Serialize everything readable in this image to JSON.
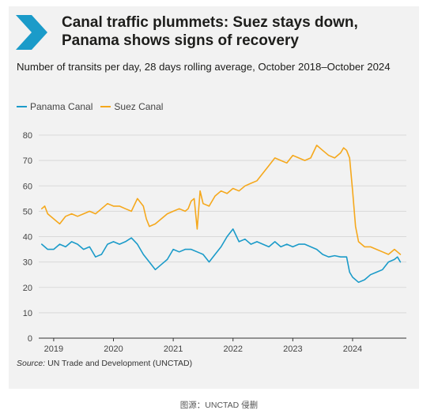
{
  "title": "Canal traffic plummets: Suez stays down, Panama shows signs of recovery",
  "subtitle": "Number of transits per day, 28 days rolling average, October 2018–October 2024",
  "source_label": "Source:",
  "source_text": " UN Trade and Development (UNCTAD)",
  "caption": "图源：UNCTAD 侵删",
  "colors": {
    "panama": "#1b9bc9",
    "suez": "#f5a81c",
    "chevron": "#1b9bc9",
    "card": "#f2f2f2"
  },
  "chart_data": {
    "type": "line",
    "title": "Canal traffic plummets: Suez stays down, Panama shows signs of recovery",
    "ylabel": "",
    "xlabel": "",
    "ylim": [
      0,
      80
    ],
    "yticks": [
      0,
      10,
      20,
      30,
      40,
      50,
      60,
      70,
      80
    ],
    "xticks": [
      "2019",
      "2020",
      "2021",
      "2022",
      "2023",
      "2024"
    ],
    "grid": "horizontal",
    "legend": "top-left",
    "series": [
      {
        "name": "Panama Canal",
        "color": "#1b9bc9",
        "points": [
          [
            2018.8,
            37
          ],
          [
            2018.9,
            35
          ],
          [
            2019.0,
            35
          ],
          [
            2019.1,
            37
          ],
          [
            2019.2,
            36
          ],
          [
            2019.3,
            38
          ],
          [
            2019.4,
            37
          ],
          [
            2019.5,
            35
          ],
          [
            2019.6,
            36
          ],
          [
            2019.7,
            32
          ],
          [
            2019.8,
            33
          ],
          [
            2019.9,
            37
          ],
          [
            2020.0,
            38
          ],
          [
            2020.1,
            37
          ],
          [
            2020.2,
            38
          ],
          [
            2020.3,
            39.5
          ],
          [
            2020.4,
            37
          ],
          [
            2020.5,
            33
          ],
          [
            2020.6,
            30
          ],
          [
            2020.7,
            27
          ],
          [
            2020.8,
            29
          ],
          [
            2020.9,
            31
          ],
          [
            2021.0,
            35
          ],
          [
            2021.1,
            34
          ],
          [
            2021.2,
            35
          ],
          [
            2021.3,
            35
          ],
          [
            2021.4,
            34
          ],
          [
            2021.5,
            33
          ],
          [
            2021.6,
            30
          ],
          [
            2021.7,
            33
          ],
          [
            2021.8,
            36
          ],
          [
            2021.9,
            40
          ],
          [
            2022.0,
            43
          ],
          [
            2022.1,
            38
          ],
          [
            2022.2,
            39
          ],
          [
            2022.3,
            37
          ],
          [
            2022.4,
            38
          ],
          [
            2022.5,
            37
          ],
          [
            2022.6,
            36
          ],
          [
            2022.7,
            38
          ],
          [
            2022.8,
            36
          ],
          [
            2022.9,
            37
          ],
          [
            2023.0,
            36
          ],
          [
            2023.1,
            37
          ],
          [
            2023.2,
            37
          ],
          [
            2023.3,
            36
          ],
          [
            2023.4,
            35
          ],
          [
            2023.5,
            33
          ],
          [
            2023.6,
            32
          ],
          [
            2023.7,
            32.5
          ],
          [
            2023.8,
            32
          ],
          [
            2023.9,
            32
          ],
          [
            2023.95,
            26
          ],
          [
            2024.0,
            24
          ],
          [
            2024.1,
            22
          ],
          [
            2024.2,
            23
          ],
          [
            2024.3,
            25
          ],
          [
            2024.4,
            26
          ],
          [
            2024.5,
            27
          ],
          [
            2024.6,
            30
          ],
          [
            2024.7,
            31
          ],
          [
            2024.75,
            32
          ],
          [
            2024.8,
            30
          ]
        ]
      },
      {
        "name": "Suez Canal",
        "color": "#f5a81c",
        "points": [
          [
            2018.8,
            51
          ],
          [
            2018.85,
            52
          ],
          [
            2018.9,
            49
          ],
          [
            2019.0,
            47
          ],
          [
            2019.1,
            45
          ],
          [
            2019.2,
            48
          ],
          [
            2019.3,
            49
          ],
          [
            2019.4,
            48
          ],
          [
            2019.5,
            49
          ],
          [
            2019.6,
            50
          ],
          [
            2019.7,
            49
          ],
          [
            2019.8,
            51
          ],
          [
            2019.9,
            53
          ],
          [
            2020.0,
            52
          ],
          [
            2020.1,
            52
          ],
          [
            2020.2,
            51
          ],
          [
            2020.3,
            50
          ],
          [
            2020.4,
            55
          ],
          [
            2020.5,
            52
          ],
          [
            2020.55,
            47
          ],
          [
            2020.6,
            44
          ],
          [
            2020.7,
            45
          ],
          [
            2020.8,
            47
          ],
          [
            2020.9,
            49
          ],
          [
            2021.0,
            50
          ],
          [
            2021.1,
            51
          ],
          [
            2021.2,
            50
          ],
          [
            2021.25,
            51
          ],
          [
            2021.3,
            54
          ],
          [
            2021.35,
            55
          ],
          [
            2021.4,
            43
          ],
          [
            2021.45,
            58
          ],
          [
            2021.5,
            53
          ],
          [
            2021.6,
            52
          ],
          [
            2021.7,
            56
          ],
          [
            2021.8,
            58
          ],
          [
            2021.9,
            57
          ],
          [
            2022.0,
            59
          ],
          [
            2022.1,
            58
          ],
          [
            2022.2,
            60
          ],
          [
            2022.3,
            61
          ],
          [
            2022.4,
            62
          ],
          [
            2022.5,
            65
          ],
          [
            2022.6,
            68
          ],
          [
            2022.7,
            71
          ],
          [
            2022.8,
            70
          ],
          [
            2022.9,
            69
          ],
          [
            2023.0,
            72
          ],
          [
            2023.1,
            71
          ],
          [
            2023.2,
            70
          ],
          [
            2023.3,
            71
          ],
          [
            2023.4,
            76
          ],
          [
            2023.5,
            74
          ],
          [
            2023.6,
            72
          ],
          [
            2023.7,
            71
          ],
          [
            2023.8,
            73
          ],
          [
            2023.85,
            75
          ],
          [
            2023.9,
            74
          ],
          [
            2023.95,
            71
          ],
          [
            2024.0,
            58
          ],
          [
            2024.05,
            44
          ],
          [
            2024.1,
            38
          ],
          [
            2024.2,
            36
          ],
          [
            2024.3,
            36
          ],
          [
            2024.4,
            35
          ],
          [
            2024.5,
            34
          ],
          [
            2024.6,
            33
          ],
          [
            2024.7,
            35
          ],
          [
            2024.75,
            34
          ],
          [
            2024.8,
            33
          ]
        ]
      }
    ]
  }
}
